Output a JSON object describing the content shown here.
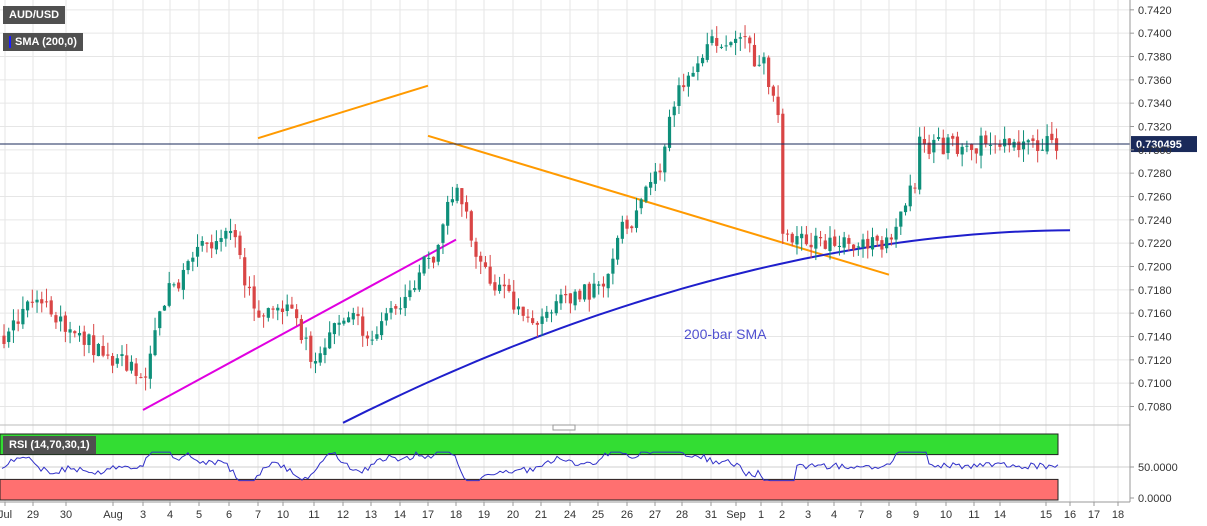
{
  "instrument": "AUD/USD",
  "sma_legend": "SMA (200,0)",
  "rsi_legend": "RSI (14,70,30,1)",
  "sma_annotation": "200-bar SMA",
  "last_price_label": "0.730495",
  "colors": {
    "bull": "#0e8f7a",
    "bear": "#d94545",
    "sma": "#1f1fcc",
    "support_line": "#e000e0",
    "wedge": "#ff9a00",
    "rsi_line": "#3030c8",
    "rsi_overbought": "#33dd33",
    "rsi_oversold": "#ff7070"
  },
  "chart_data": [
    {
      "type": "candlestick",
      "title": "AUD/USD",
      "ylim": [
        0.7065,
        0.7425
      ],
      "y_ticks": [
        "0.7080",
        "0.7100",
        "0.7120",
        "0.7140",
        "0.7160",
        "0.7180",
        "0.7200",
        "0.7220",
        "0.7240",
        "0.7260",
        "0.7280",
        "0.7300",
        "0.7320",
        "0.7340",
        "0.7360",
        "0.7380",
        "0.7400",
        "0.7420"
      ],
      "x_ticks": [
        "Jul",
        "29",
        "30",
        "Aug",
        "3",
        "4",
        "5",
        "6",
        "7",
        "10",
        "11",
        "12",
        "13",
        "14",
        "17",
        "18",
        "19",
        "20",
        "21",
        "24",
        "25",
        "26",
        "27",
        "28",
        "31",
        "Sep",
        "1",
        "2",
        "3",
        "4",
        "7",
        "8",
        "9",
        "10",
        "11",
        "14",
        "15",
        "16",
        "17",
        "18"
      ],
      "last_price": 0.730495,
      "series": [
        {
          "name": "AUD/USD",
          "anchors": [
            [
              "Jul",
              0.714
            ],
            [
              "29",
              0.717
            ],
            [
              "30",
              0.715
            ],
            [
              "Aug",
              0.712
            ],
            [
              "3",
              0.711
            ],
            [
              "4",
              0.718
            ],
            [
              "5",
              0.7215
            ],
            [
              "6",
              0.7225
            ],
            [
              "7",
              0.716
            ],
            [
              "10",
              0.7165
            ],
            [
              "11",
              0.7125
            ],
            [
              "12",
              0.716
            ],
            [
              "13",
              0.7145
            ],
            [
              "14",
              0.717
            ],
            [
              "17",
              0.7205
            ],
            [
              "18",
              0.726
            ],
            [
              "19",
              0.7195
            ],
            [
              "20",
              0.717
            ],
            [
              "21",
              0.7155
            ],
            [
              "24",
              0.7175
            ],
            [
              "25",
              0.718
            ],
            [
              "26",
              0.7235
            ],
            [
              "27",
              0.728
            ],
            [
              "28",
              0.736
            ],
            [
              "31",
              0.739
            ],
            [
              "Sep",
              0.74
            ],
            [
              "1",
              0.7375
            ],
            [
              "2",
              0.732
            ],
            [
              "3",
              0.728
            ],
            [
              "4",
              0.7265
            ],
            [
              "7",
              0.7285
            ],
            [
              "8",
              0.722
            ],
            [
              "9",
              0.7275
            ],
            [
              "10",
              0.728
            ],
            [
              "11",
              0.7275
            ],
            [
              "14",
              0.729
            ],
            [
              "15",
              0.7305
            ]
          ]
        },
        {
          "name": "200-bar SMA",
          "start": [
            "12",
            0.7066
          ],
          "end": [
            "16",
            0.7231
          ]
        },
        {
          "name": "support",
          "start": [
            "3",
            0.7077
          ],
          "end": [
            "18",
            0.7223
          ]
        },
        {
          "name": "wedge upper",
          "start": [
            "7",
            0.731
          ],
          "end": [
            "17",
            0.7355
          ]
        },
        {
          "name": "wedge lower",
          "start": [
            "8",
            0.7193
          ],
          "end": [
            "17",
            0.7312
          ]
        }
      ]
    },
    {
      "type": "line",
      "title": "RSI (14,70,30,1)",
      "y_ticks": [
        "50.0000",
        "0.0000"
      ],
      "overbought": 70,
      "oversold": 30
    }
  ]
}
